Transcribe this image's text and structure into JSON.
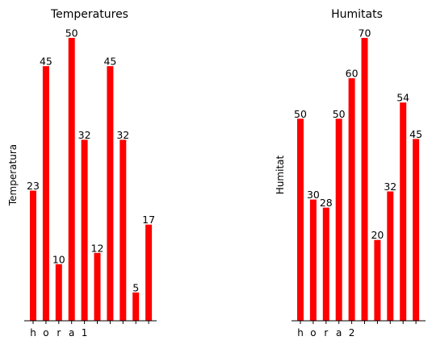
{
  "chart_data": [
    {
      "type": "bar",
      "title": "Temperatures",
      "ylabel": "Temperatura",
      "tick_labels": [
        "h",
        "o",
        "r",
        "a",
        "1",
        "",
        "",
        "",
        "",
        ""
      ],
      "values": [
        23,
        45,
        10,
        50,
        32,
        12,
        45,
        32,
        5,
        17
      ],
      "color": "#ff0000",
      "ylim": [
        0,
        50
      ]
    },
    {
      "type": "bar",
      "title": "Humitats",
      "ylabel": "Humitat",
      "tick_labels": [
        "h",
        "o",
        "r",
        "a",
        "2",
        "",
        "",
        "",
        "",
        ""
      ],
      "values": [
        50,
        30,
        28,
        50,
        60,
        70,
        20,
        32,
        54,
        45
      ],
      "color": "#ff0000",
      "ylim": [
        0,
        70
      ]
    }
  ]
}
